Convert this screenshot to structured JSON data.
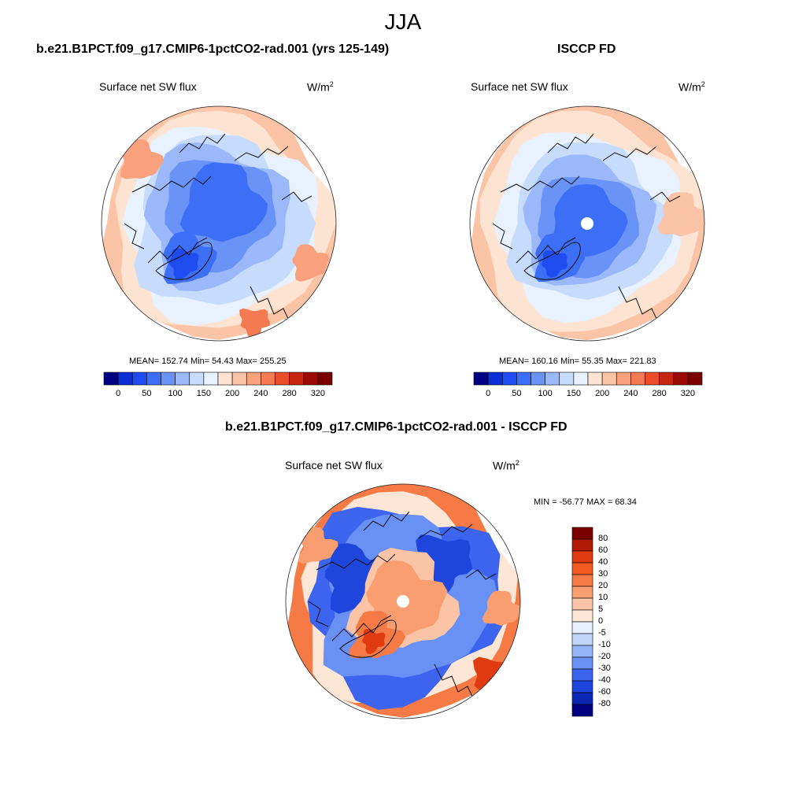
{
  "title": "JJA",
  "panel1": {
    "title": "b.e21.B1PCT.f09_g17.CMIP6-1pctCO2-rad.001 (yrs 125-149)",
    "variable": "Surface net SW flux",
    "units": "W/m",
    "units_exp": "2",
    "stats": "MEAN= 152.74  Min=  54.43  Max= 255.25"
  },
  "panel2": {
    "title": "ISCCP FD",
    "variable": "Surface net SW flux",
    "units": "W/m",
    "units_exp": "2",
    "stats": "MEAN= 160.16  Min=  55.35  Max= 221.83"
  },
  "panel3": {
    "title": "b.e21.B1PCT.f09_g17.CMIP6-1pctCO2-rad.001 - ISCCP FD",
    "variable": "Surface net SW flux",
    "units": "W/m",
    "units_exp": "2",
    "stats": "MIN = -56.77 MAX =  68.34"
  },
  "chart_data": [
    {
      "type": "heatmap",
      "projection": "north-polar-stereographic",
      "title": "b.e21.B1PCT.f09_g17.CMIP6-1pctCO2-rad.001 (yrs 125-149)",
      "variable": "Surface net SW flux",
      "units": "W/m2",
      "mean": 152.74,
      "min": 54.43,
      "max": 255.25,
      "colorbar_ticks": [
        "0",
        "50",
        "100",
        "150",
        "200",
        "240",
        "280",
        "320"
      ],
      "colorbar_colors": [
        "#000080",
        "#0a2fd6",
        "#1e4cf0",
        "#3c6ff5",
        "#6a93f7",
        "#9ab8fa",
        "#c7dbfc",
        "#e8f1fe",
        "#fde3d1",
        "#fbc4a6",
        "#f8a17c",
        "#f47a52",
        "#ea4d28",
        "#c8260e",
        "#9c0a04",
        "#7a0000"
      ]
    },
    {
      "type": "heatmap",
      "projection": "north-polar-stereographic",
      "title": "ISCCP FD",
      "variable": "Surface net SW flux",
      "units": "W/m2",
      "mean": 160.16,
      "min": 55.35,
      "max": 221.83,
      "colorbar_ticks": [
        "0",
        "50",
        "100",
        "150",
        "200",
        "240",
        "280",
        "320"
      ],
      "colorbar_colors": [
        "#000080",
        "#0a2fd6",
        "#1e4cf0",
        "#3c6ff5",
        "#6a93f7",
        "#9ab8fa",
        "#c7dbfc",
        "#e8f1fe",
        "#fde3d1",
        "#fbc4a6",
        "#f8a17c",
        "#f47a52",
        "#ea4d28",
        "#c8260e",
        "#9c0a04",
        "#7a0000"
      ]
    },
    {
      "type": "heatmap",
      "projection": "north-polar-stereographic",
      "title": "b.e21.B1PCT.f09_g17.CMIP6-1pctCO2-rad.001 - ISCCP FD",
      "variable": "Surface net SW flux",
      "units": "W/m2",
      "min": -56.77,
      "max": 68.34,
      "colorbar_ticks": [
        "80",
        "60",
        "40",
        "30",
        "20",
        "10",
        "5",
        "0",
        "-5",
        "-10",
        "-20",
        "-30",
        "-40",
        "-60",
        "-80"
      ],
      "colorbar_colors": [
        "#7a0000",
        "#b01a05",
        "#e03a10",
        "#f25a22",
        "#f57a45",
        "#f89e70",
        "#fbc4a6",
        "#fde6d6",
        "#e6f0fe",
        "#c2d6fb",
        "#96b5f8",
        "#6890f5",
        "#3c64ee",
        "#1e46dc",
        "#0a28b4",
        "#000080"
      ]
    }
  ]
}
